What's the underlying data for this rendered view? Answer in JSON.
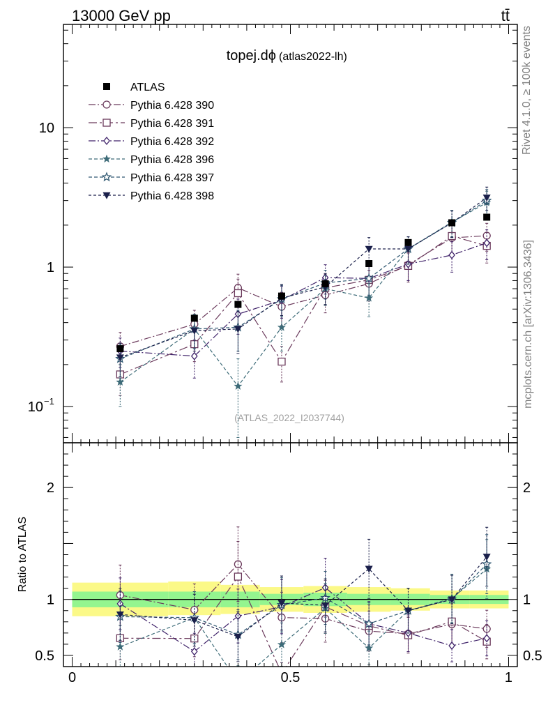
{
  "chart_data": {
    "type": "line",
    "header_left": "13000 GeV pp",
    "header_right": "tt̄",
    "title": "topej.dϕ",
    "title_sub": "(atlas2022-lh)",
    "watermark": "(ATLAS_2022_I2037744)",
    "side_label_top": "Rivet 4.1.0, ≥ 100k events",
    "side_label_bottom": "mcplots.cern.ch [arXiv:1306.3436]",
    "ratio_ylabel": "Ratio to ATLAS",
    "xlim": [
      -0.02,
      1.02
    ],
    "ylim_main": [
      0.055,
      55
    ],
    "ylim_ratio": [
      0.4,
      2.4
    ],
    "x_ticks": [
      {
        "value": 0,
        "label": "0"
      },
      {
        "value": 0.5,
        "label": "0.5"
      },
      {
        "value": 1,
        "label": "1"
      }
    ],
    "y_ticks_main": [
      {
        "value": 0.1,
        "base": "10",
        "exp": "−1"
      },
      {
        "value": 1,
        "base": "1",
        "exp": ""
      },
      {
        "value": 10,
        "base": "10",
        "exp": ""
      }
    ],
    "y_ticks_ratio": [
      {
        "value": 0.5,
        "label": "0.5"
      },
      {
        "value": 1,
        "label": "1"
      },
      {
        "value": 2,
        "label": "2"
      }
    ],
    "x": [
      0.11,
      0.28,
      0.38,
      0.48,
      0.58,
      0.68,
      0.77,
      0.87,
      0.95
    ],
    "bin_edges": [
      0,
      0.22,
      0.34,
      0.43,
      0.53,
      0.63,
      0.73,
      0.82,
      0.91,
      1.0
    ],
    "band_yellow": [
      [
        0.85,
        1.15
      ],
      [
        0.86,
        1.16
      ],
      [
        0.87,
        1.13
      ],
      [
        0.89,
        1.11
      ],
      [
        0.88,
        1.12
      ],
      [
        0.89,
        1.11
      ],
      [
        0.9,
        1.1
      ],
      [
        0.92,
        1.08
      ],
      [
        0.92,
        1.08
      ]
    ],
    "band_green": [
      [
        0.93,
        1.07
      ],
      [
        0.93,
        1.07
      ],
      [
        0.93,
        1.07
      ],
      [
        0.95,
        1.05
      ],
      [
        0.94,
        1.06
      ],
      [
        0.95,
        1.05
      ],
      [
        0.95,
        1.05
      ],
      [
        0.96,
        1.04
      ],
      [
        0.96,
        1.04
      ]
    ],
    "data": {
      "name": "ATLAS",
      "values": [
        0.26,
        0.43,
        0.54,
        0.62,
        0.76,
        1.06,
        1.5,
        2.08,
        2.28
      ]
    },
    "series": [
      {
        "name": "Pythia 6.428 390",
        "color": "#6b3a5c",
        "marker": "circle-open",
        "dash": "10,3,2,3",
        "values": [
          0.27,
          0.39,
          0.71,
          0.52,
          0.63,
          0.76,
          1.04,
          1.62,
          1.68
        ],
        "errors": [
          0.07,
          0.1,
          0.18,
          0.14,
          0.16,
          0.19,
          0.24,
          0.38,
          0.38
        ]
      },
      {
        "name": "Pythia 6.428 391",
        "color": "#6b3a5c",
        "marker": "square-open",
        "dash": "12,4,3,4",
        "values": [
          0.17,
          0.28,
          0.65,
          0.21,
          0.71,
          0.81,
          1.02,
          1.67,
          1.42
        ],
        "errors": [
          0.05,
          0.07,
          0.17,
          0.06,
          0.18,
          0.2,
          0.24,
          0.4,
          0.35
        ]
      },
      {
        "name": "Pythia 6.428 392",
        "color": "#40236a",
        "marker": "diamond-open",
        "dash": "10,3,2,3",
        "values": [
          0.25,
          0.23,
          0.46,
          0.58,
          0.84,
          0.83,
          1.05,
          1.22,
          1.49
        ],
        "errors": [
          0.06,
          0.07,
          0.13,
          0.15,
          0.2,
          0.21,
          0.25,
          0.3,
          0.36
        ]
      },
      {
        "name": "Pythia 6.428 396",
        "color": "#3d6b78",
        "marker": "star-filled",
        "dash": "5,3",
        "values": [
          0.15,
          0.36,
          0.14,
          0.37,
          0.7,
          0.6,
          1.35,
          2.1,
          2.9
        ],
        "errors": [
          0.05,
          0.1,
          0.08,
          0.12,
          0.17,
          0.16,
          0.3,
          0.45,
          0.6
        ]
      },
      {
        "name": "Pythia 6.428 397",
        "color": "#2d5670",
        "marker": "star-open",
        "dash": "5,3",
        "values": [
          0.22,
          0.36,
          0.37,
          0.59,
          0.77,
          0.83,
          1.35,
          2.08,
          3.0
        ],
        "errors": [
          0.06,
          0.1,
          0.12,
          0.15,
          0.18,
          0.2,
          0.3,
          0.45,
          0.6
        ]
      },
      {
        "name": "Pythia 6.428 398",
        "color": "#1a1f4a",
        "marker": "triangle-down-filled",
        "dash": "4,3",
        "values": [
          0.225,
          0.35,
          0.36,
          0.6,
          0.72,
          1.35,
          1.35,
          2.08,
          3.15
        ],
        "errors": [
          0.06,
          0.1,
          0.12,
          0.15,
          0.18,
          0.28,
          0.3,
          0.45,
          0.6
        ]
      }
    ]
  }
}
